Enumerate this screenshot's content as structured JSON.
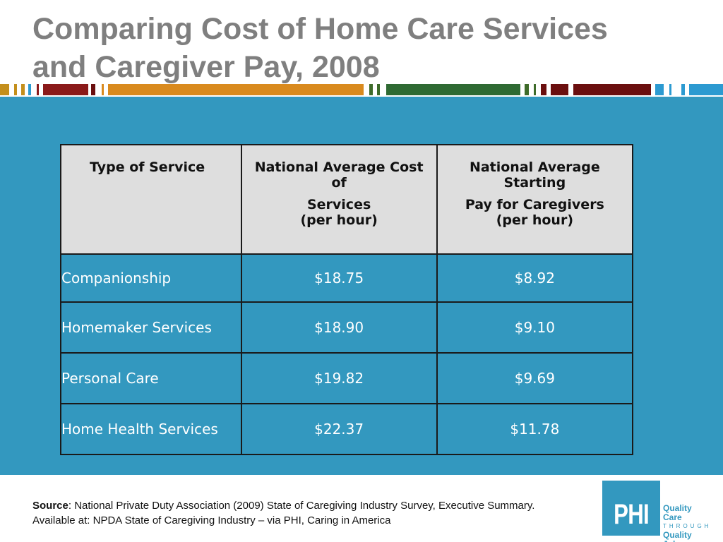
{
  "title": {
    "line1": "Comparing Cost of Home Care Services",
    "line2": "and Caregiver Pay, 2008"
  },
  "stripe_colors": [
    "#c48f1c",
    "#8b1a1a",
    "#6b0f0f",
    "#d98a1e",
    "#3e6b2a",
    "#2f6a33",
    "#2c9ad1"
  ],
  "table": {
    "headers": {
      "service": "Type of Service",
      "cost_line1": "National Average Cost",
      "cost_line2": "of",
      "cost_line3": "Services",
      "cost_line4": "(per hour)",
      "pay_line1": "National Average",
      "pay_line2": "Starting",
      "pay_line3": "Pay for Caregivers",
      "pay_line4": "(per hour)"
    },
    "rows": [
      {
        "service": "Companionship",
        "cost": "$18.75",
        "pay": "$8.92"
      },
      {
        "service": "Homemaker Services",
        "cost": "$18.90",
        "pay": "$9.10"
      },
      {
        "service": "Personal Care",
        "cost": "$19.82",
        "pay": "$9.69"
      },
      {
        "service": "Home Health Services",
        "cost": "$22.37",
        "pay": "$11.78"
      }
    ]
  },
  "source": {
    "label": "Source",
    "text": ": National Private Duty Association (2009) State of Caregiving Industry Survey, Executive Summary. Available at: NPDA State of Caregiving Industry – via PHI, Caring in America"
  },
  "logo": {
    "mark": "PHI",
    "line1": "Quality Care",
    "line2": "THROUGH",
    "line3": "Quality Jobs"
  },
  "colors": {
    "panel": "#3398bf",
    "title": "#7f7f7f",
    "header_bg": "#dedede"
  }
}
